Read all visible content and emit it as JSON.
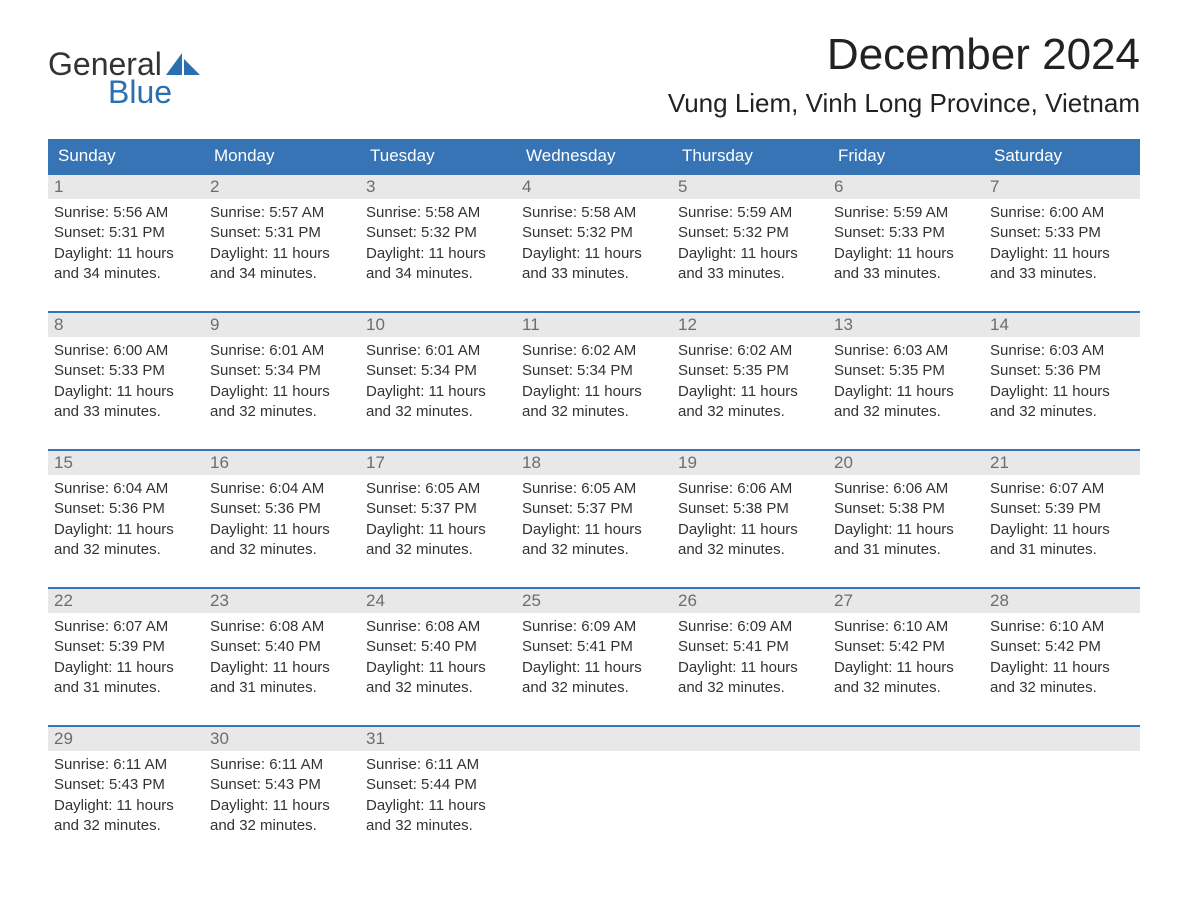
{
  "colors": {
    "header_bg": "#3674b5",
    "header_text": "#ffffff",
    "week_divider": "#3674b5",
    "daynum_bg": "#e8e8e8",
    "daynum_text": "#6d6d6d",
    "body_text": "#333333",
    "logo_blue": "#2a6fb0",
    "page_bg": "#ffffff"
  },
  "logo": {
    "line1": "General",
    "line2": "Blue"
  },
  "title": "December 2024",
  "location": "Vung Liem, Vinh Long Province, Vietnam",
  "dow": [
    "Sunday",
    "Monday",
    "Tuesday",
    "Wednesday",
    "Thursday",
    "Friday",
    "Saturday"
  ],
  "weeks": [
    [
      {
        "n": "1",
        "sr": "Sunrise: 5:56 AM",
        "ss": "Sunset: 5:31 PM",
        "d1": "Daylight: 11 hours",
        "d2": "and 34 minutes."
      },
      {
        "n": "2",
        "sr": "Sunrise: 5:57 AM",
        "ss": "Sunset: 5:31 PM",
        "d1": "Daylight: 11 hours",
        "d2": "and 34 minutes."
      },
      {
        "n": "3",
        "sr": "Sunrise: 5:58 AM",
        "ss": "Sunset: 5:32 PM",
        "d1": "Daylight: 11 hours",
        "d2": "and 34 minutes."
      },
      {
        "n": "4",
        "sr": "Sunrise: 5:58 AM",
        "ss": "Sunset: 5:32 PM",
        "d1": "Daylight: 11 hours",
        "d2": "and 33 minutes."
      },
      {
        "n": "5",
        "sr": "Sunrise: 5:59 AM",
        "ss": "Sunset: 5:32 PM",
        "d1": "Daylight: 11 hours",
        "d2": "and 33 minutes."
      },
      {
        "n": "6",
        "sr": "Sunrise: 5:59 AM",
        "ss": "Sunset: 5:33 PM",
        "d1": "Daylight: 11 hours",
        "d2": "and 33 minutes."
      },
      {
        "n": "7",
        "sr": "Sunrise: 6:00 AM",
        "ss": "Sunset: 5:33 PM",
        "d1": "Daylight: 11 hours",
        "d2": "and 33 minutes."
      }
    ],
    [
      {
        "n": "8",
        "sr": "Sunrise: 6:00 AM",
        "ss": "Sunset: 5:33 PM",
        "d1": "Daylight: 11 hours",
        "d2": "and 33 minutes."
      },
      {
        "n": "9",
        "sr": "Sunrise: 6:01 AM",
        "ss": "Sunset: 5:34 PM",
        "d1": "Daylight: 11 hours",
        "d2": "and 32 minutes."
      },
      {
        "n": "10",
        "sr": "Sunrise: 6:01 AM",
        "ss": "Sunset: 5:34 PM",
        "d1": "Daylight: 11 hours",
        "d2": "and 32 minutes."
      },
      {
        "n": "11",
        "sr": "Sunrise: 6:02 AM",
        "ss": "Sunset: 5:34 PM",
        "d1": "Daylight: 11 hours",
        "d2": "and 32 minutes."
      },
      {
        "n": "12",
        "sr": "Sunrise: 6:02 AM",
        "ss": "Sunset: 5:35 PM",
        "d1": "Daylight: 11 hours",
        "d2": "and 32 minutes."
      },
      {
        "n": "13",
        "sr": "Sunrise: 6:03 AM",
        "ss": "Sunset: 5:35 PM",
        "d1": "Daylight: 11 hours",
        "d2": "and 32 minutes."
      },
      {
        "n": "14",
        "sr": "Sunrise: 6:03 AM",
        "ss": "Sunset: 5:36 PM",
        "d1": "Daylight: 11 hours",
        "d2": "and 32 minutes."
      }
    ],
    [
      {
        "n": "15",
        "sr": "Sunrise: 6:04 AM",
        "ss": "Sunset: 5:36 PM",
        "d1": "Daylight: 11 hours",
        "d2": "and 32 minutes."
      },
      {
        "n": "16",
        "sr": "Sunrise: 6:04 AM",
        "ss": "Sunset: 5:36 PM",
        "d1": "Daylight: 11 hours",
        "d2": "and 32 minutes."
      },
      {
        "n": "17",
        "sr": "Sunrise: 6:05 AM",
        "ss": "Sunset: 5:37 PM",
        "d1": "Daylight: 11 hours",
        "d2": "and 32 minutes."
      },
      {
        "n": "18",
        "sr": "Sunrise: 6:05 AM",
        "ss": "Sunset: 5:37 PM",
        "d1": "Daylight: 11 hours",
        "d2": "and 32 minutes."
      },
      {
        "n": "19",
        "sr": "Sunrise: 6:06 AM",
        "ss": "Sunset: 5:38 PM",
        "d1": "Daylight: 11 hours",
        "d2": "and 32 minutes."
      },
      {
        "n": "20",
        "sr": "Sunrise: 6:06 AM",
        "ss": "Sunset: 5:38 PM",
        "d1": "Daylight: 11 hours",
        "d2": "and 31 minutes."
      },
      {
        "n": "21",
        "sr": "Sunrise: 6:07 AM",
        "ss": "Sunset: 5:39 PM",
        "d1": "Daylight: 11 hours",
        "d2": "and 31 minutes."
      }
    ],
    [
      {
        "n": "22",
        "sr": "Sunrise: 6:07 AM",
        "ss": "Sunset: 5:39 PM",
        "d1": "Daylight: 11 hours",
        "d2": "and 31 minutes."
      },
      {
        "n": "23",
        "sr": "Sunrise: 6:08 AM",
        "ss": "Sunset: 5:40 PM",
        "d1": "Daylight: 11 hours",
        "d2": "and 31 minutes."
      },
      {
        "n": "24",
        "sr": "Sunrise: 6:08 AM",
        "ss": "Sunset: 5:40 PM",
        "d1": "Daylight: 11 hours",
        "d2": "and 32 minutes."
      },
      {
        "n": "25",
        "sr": "Sunrise: 6:09 AM",
        "ss": "Sunset: 5:41 PM",
        "d1": "Daylight: 11 hours",
        "d2": "and 32 minutes."
      },
      {
        "n": "26",
        "sr": "Sunrise: 6:09 AM",
        "ss": "Sunset: 5:41 PM",
        "d1": "Daylight: 11 hours",
        "d2": "and 32 minutes."
      },
      {
        "n": "27",
        "sr": "Sunrise: 6:10 AM",
        "ss": "Sunset: 5:42 PM",
        "d1": "Daylight: 11 hours",
        "d2": "and 32 minutes."
      },
      {
        "n": "28",
        "sr": "Sunrise: 6:10 AM",
        "ss": "Sunset: 5:42 PM",
        "d1": "Daylight: 11 hours",
        "d2": "and 32 minutes."
      }
    ],
    [
      {
        "n": "29",
        "sr": "Sunrise: 6:11 AM",
        "ss": "Sunset: 5:43 PM",
        "d1": "Daylight: 11 hours",
        "d2": "and 32 minutes."
      },
      {
        "n": "30",
        "sr": "Sunrise: 6:11 AM",
        "ss": "Sunset: 5:43 PM",
        "d1": "Daylight: 11 hours",
        "d2": "and 32 minutes."
      },
      {
        "n": "31",
        "sr": "Sunrise: 6:11 AM",
        "ss": "Sunset: 5:44 PM",
        "d1": "Daylight: 11 hours",
        "d2": "and 32 minutes."
      },
      {
        "n": "",
        "sr": "",
        "ss": "",
        "d1": "",
        "d2": ""
      },
      {
        "n": "",
        "sr": "",
        "ss": "",
        "d1": "",
        "d2": ""
      },
      {
        "n": "",
        "sr": "",
        "ss": "",
        "d1": "",
        "d2": ""
      },
      {
        "n": "",
        "sr": "",
        "ss": "",
        "d1": "",
        "d2": ""
      }
    ]
  ]
}
